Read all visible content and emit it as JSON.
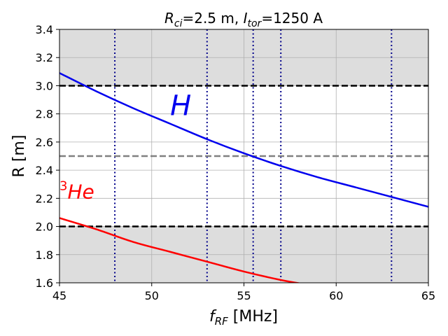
{
  "chart_data": {
    "type": "line",
    "title": {
      "r_sym": "R",
      "r_sub": "ci",
      "r_rest": "=2.5 m, ",
      "i_sym": "I",
      "i_sub": "tor",
      "i_rest": "=1250 A"
    },
    "xlabel": {
      "sym": "f",
      "sub": "RF",
      "rest": " [MHz]"
    },
    "ylabel": "R [m]",
    "xlim": [
      45,
      65
    ],
    "ylim": [
      1.6,
      3.4
    ],
    "xticks": [
      45,
      50,
      55,
      60,
      65
    ],
    "yticks": [
      1.6,
      1.8,
      2.0,
      2.2,
      2.4,
      2.6,
      2.8,
      3.0,
      3.2,
      3.4
    ],
    "xtick_labels": [
      "45",
      "50",
      "55",
      "60",
      "65"
    ],
    "ytick_labels": [
      "1.6",
      "1.8",
      "2.0",
      "2.2",
      "2.4",
      "2.6",
      "2.8",
      "3.0",
      "3.2",
      "3.4"
    ],
    "grid": true,
    "shaded_bands": [
      {
        "y0": 3.0,
        "y1": 3.4,
        "color": "#dddddd"
      },
      {
        "y0": 1.6,
        "y1": 2.0,
        "color": "#dddddd"
      }
    ],
    "hlines": [
      {
        "y": 3.0,
        "color": "#000000",
        "style": "dashed"
      },
      {
        "y": 2.5,
        "color": "#808080",
        "style": "dashed"
      },
      {
        "y": 2.0,
        "color": "#000000",
        "style": "dashed"
      }
    ],
    "vlines": [
      {
        "x": 48,
        "color": "#00008b",
        "style": "dotted"
      },
      {
        "x": 53,
        "color": "#00008b",
        "style": "dotted"
      },
      {
        "x": 55.5,
        "color": "#00008b",
        "style": "dotted"
      },
      {
        "x": 57,
        "color": "#00008b",
        "style": "dotted"
      },
      {
        "x": 63,
        "color": "#00008b",
        "style": "dotted"
      }
    ],
    "series": [
      {
        "label": "H",
        "color": "#0000ee",
        "x": [
          45,
          47,
          49,
          51,
          53,
          55,
          57,
          59,
          61,
          63,
          65
        ],
        "y": [
          3.09,
          2.96,
          2.84,
          2.73,
          2.62,
          2.52,
          2.43,
          2.35,
          2.28,
          2.21,
          2.14
        ]
      },
      {
        "label": "3He",
        "color": "#ff0000",
        "x": [
          45,
          47,
          49,
          51,
          53,
          55,
          57,
          58.3
        ],
        "y": [
          2.06,
          1.98,
          1.89,
          1.82,
          1.75,
          1.68,
          1.62,
          1.59
        ]
      }
    ],
    "annotations": [
      {
        "text": "H",
        "x": 51.0,
        "y": 2.79,
        "color": "#0000ee"
      },
      {
        "sup": "3",
        "text": "He",
        "x": 45.0,
        "y": 2.2,
        "color": "#ff0000"
      }
    ]
  }
}
